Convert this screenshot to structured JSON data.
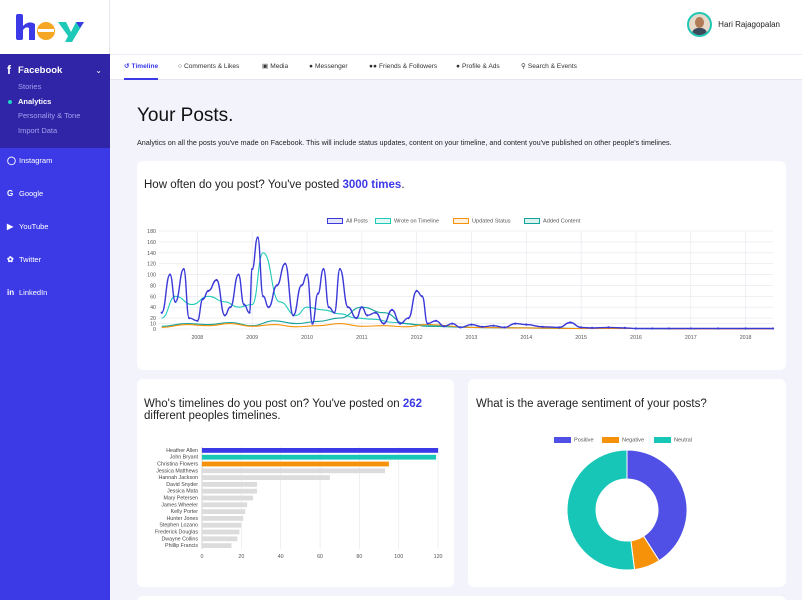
{
  "app": {
    "logo_text": "hey"
  },
  "sidebar": {
    "facebook": {
      "label": "Facebook",
      "items": [
        "Stories",
        "Analytics",
        "Personality & Tone",
        "Import Data"
      ],
      "active": "Analytics"
    },
    "nav": [
      {
        "label": "Instagram",
        "icon": "instagram-icon"
      },
      {
        "label": "Google",
        "icon": "google-icon"
      },
      {
        "label": "YouTube",
        "icon": "youtube-icon"
      },
      {
        "label": "Twitter",
        "icon": "twitter-icon"
      },
      {
        "label": "LinkedIn",
        "icon": "linkedin-icon"
      }
    ]
  },
  "header": {
    "user_name": "Hari Rajagopalan"
  },
  "tabs": [
    {
      "label": "Timeline",
      "active": true
    },
    {
      "label": "Comments & Likes"
    },
    {
      "label": "Media"
    },
    {
      "label": "Messenger"
    },
    {
      "label": "Friends & Followers"
    },
    {
      "label": "Profile & Ads"
    },
    {
      "label": "Search & Events"
    }
  ],
  "main": {
    "title": "Your Posts.",
    "description": "Analytics on all the posts you've made on Facebook. This will include status updates, content on your timeline, and content you've published on other people's timelines."
  },
  "posts_card": {
    "title_prefix": "How often do you post? You've posted ",
    "title_highlight": "3000 times",
    "title_suffix": "."
  },
  "timelines_card": {
    "title_prefix": "Who's timelines do you post on? You've posted on ",
    "title_highlight": "262",
    "title_suffix": " different peoples timelines."
  },
  "sentiment_card": {
    "title": "What is the average sentiment of your posts?"
  },
  "colors": {
    "primary": "#3c3ae6",
    "sidebar_dark": "#3025a6",
    "all_posts": "#3b39d8",
    "wrote_on_timeline": "#1fc9b8",
    "updated_status": "#f5920a",
    "added_content": "#14a39a",
    "positive": "#5050e6",
    "negative": "#f5920a",
    "neutral": "#17c6b6",
    "bar_gray": "#dcdcdc"
  },
  "chart_data": [
    {
      "type": "line",
      "title": "How often do you post?",
      "x_ticks": [
        "2008",
        "2009",
        "2010",
        "2011",
        "2012",
        "2013",
        "2014",
        "2015",
        "2016",
        "2017",
        "2018"
      ],
      "x_range": [
        2007.3,
        2018.5
      ],
      "ylim": [
        0,
        180
      ],
      "y_ticks": [
        0,
        10,
        20,
        40,
        60,
        80,
        100,
        120,
        140,
        160,
        180
      ],
      "series": [
        {
          "name": "All Posts",
          "x": [
            2007.35,
            2007.5,
            2007.6,
            2007.75,
            2007.85,
            2008.0,
            2008.1,
            2008.2,
            2008.35,
            2008.5,
            2008.6,
            2008.75,
            2008.85,
            2008.95,
            2009.0,
            2009.1,
            2009.2,
            2009.3,
            2009.45,
            2009.6,
            2009.75,
            2009.9,
            2010.0,
            2010.1,
            2010.2,
            2010.3,
            2010.4,
            2010.5,
            2010.6,
            2010.75,
            2010.9,
            2011.0,
            2011.1,
            2011.25,
            2011.4,
            2011.55,
            2011.7,
            2011.85,
            2012.0,
            2012.1,
            2012.2,
            2012.35,
            2012.5,
            2012.65,
            2012.8,
            2013.0,
            2013.2,
            2013.4,
            2013.6,
            2013.8,
            2014.0,
            2014.3,
            2014.6,
            2014.8,
            2015.0,
            2015.2,
            2015.5,
            2015.8,
            2016.0,
            2016.3,
            2016.6,
            2017.0,
            2017.5,
            2018.0,
            2018.5
          ],
          "values": [
            30,
            100,
            50,
            110,
            20,
            15,
            55,
            70,
            90,
            25,
            40,
            100,
            45,
            30,
            110,
            168,
            60,
            40,
            80,
            120,
            25,
            80,
            100,
            10,
            65,
            110,
            40,
            30,
            110,
            40,
            20,
            40,
            25,
            30,
            10,
            35,
            10,
            20,
            70,
            60,
            10,
            15,
            5,
            10,
            3,
            8,
            4,
            6,
            3,
            10,
            8,
            4,
            3,
            12,
            3,
            2,
            3,
            2,
            1,
            1,
            1,
            1,
            1,
            1,
            1
          ]
        },
        {
          "name": "Wrote on Timeline",
          "x": [
            2007.35,
            2007.6,
            2007.9,
            2008.2,
            2008.5,
            2008.75,
            2009.0,
            2009.2,
            2009.5,
            2009.8,
            2010.0,
            2010.3,
            2010.6,
            2010.9,
            2011.2,
            2011.6,
            2012.0,
            2012.5,
            2013.0,
            2014.0,
            2015.0,
            2016.0,
            2017.0,
            2018.5
          ],
          "values": [
            20,
            60,
            45,
            60,
            50,
            40,
            45,
            140,
            50,
            25,
            40,
            35,
            28,
            20,
            18,
            12,
            8,
            5,
            3,
            2,
            1,
            1,
            0,
            0
          ]
        },
        {
          "name": "Updated Status",
          "x": [
            2007.35,
            2007.8,
            2008.2,
            2008.6,
            2009.0,
            2009.4,
            2009.8,
            2010.2,
            2010.6,
            2011.0,
            2011.4,
            2011.8,
            2012.2,
            2013.0,
            2014.0,
            2015.0,
            2016.0,
            2017.0,
            2018.5
          ],
          "values": [
            3,
            8,
            6,
            10,
            5,
            8,
            4,
            6,
            10,
            5,
            6,
            4,
            8,
            3,
            2,
            1,
            1,
            0,
            0
          ]
        },
        {
          "name": "Added Content",
          "x": [
            2007.35,
            2007.8,
            2008.2,
            2008.6,
            2009.0,
            2009.4,
            2009.8,
            2010.2,
            2010.6,
            2011.0,
            2011.4,
            2011.8,
            2012.2,
            2013.0,
            2014.0,
            2015.0,
            2016.0,
            2017.0,
            2018.5
          ],
          "values": [
            5,
            10,
            8,
            12,
            6,
            15,
            10,
            14,
            20,
            40,
            30,
            10,
            5,
            3,
            2,
            1,
            1,
            0,
            0
          ]
        }
      ]
    },
    {
      "type": "bar",
      "orientation": "horizontal",
      "title": "Who's timelines do you post on?",
      "categories": [
        "Heather Allen",
        "John Bryant",
        "Christina Flowers",
        "Jessica Matthews",
        "Hannah Jackson",
        "David Snyder",
        "Jessica Mata",
        "Mary Petersen",
        "James Wheeler",
        "Kelly Porter",
        "Hunter Jones",
        "Stephen Lozano",
        "Frederick Douglas",
        "Dwayne Collins",
        "Phillip Francis"
      ],
      "values": [
        120,
        119,
        95,
        93,
        65,
        28,
        28,
        26,
        23,
        22,
        21,
        20,
        19,
        18,
        15
      ],
      "x_ticks": [
        0,
        20,
        40,
        60,
        80,
        100,
        120
      ],
      "xlim": [
        0,
        122
      ]
    },
    {
      "type": "pie",
      "style": "doughnut",
      "title": "What is the average sentiment of your posts?",
      "labels": [
        "Positive",
        "Negative",
        "Neutral"
      ],
      "values": [
        41,
        7,
        52
      ]
    }
  ]
}
